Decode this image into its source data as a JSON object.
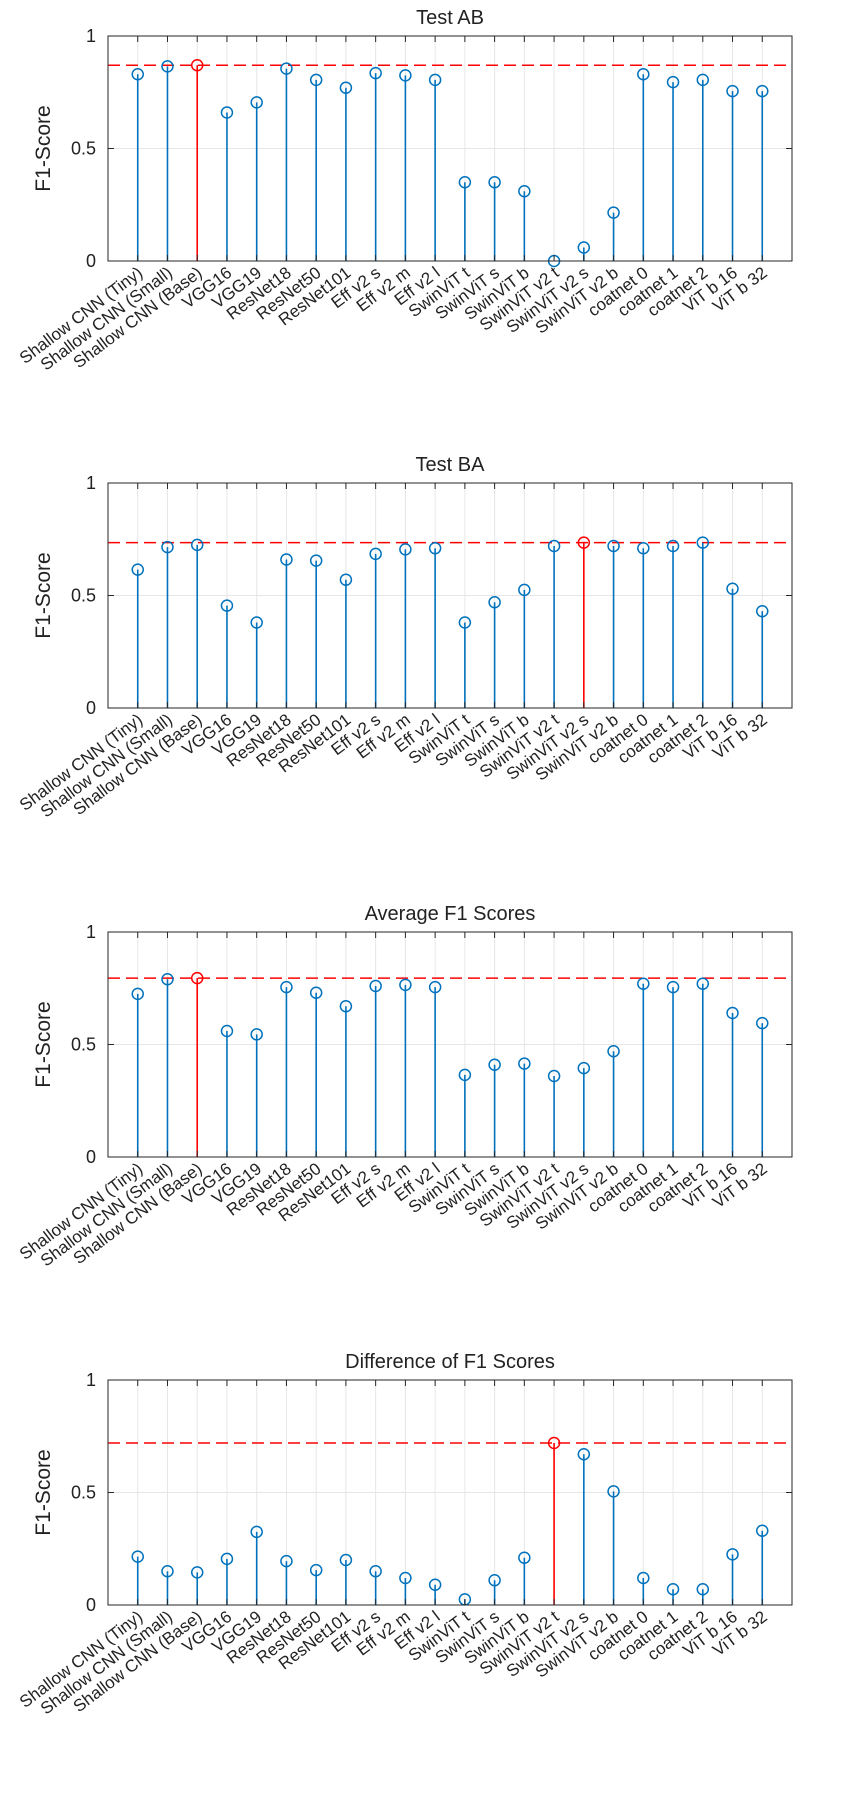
{
  "chart_data": [
    {
      "type": "stem",
      "title": "Test AB",
      "ylabel": "F1-Score",
      "xlabel": "",
      "ylim": [
        0,
        1
      ],
      "yticks": [
        "0",
        "0.5",
        "1"
      ],
      "grid": true,
      "categories": [
        "Shallow CNN (Tiny)",
        "Shallow CNN (Small)",
        "Shallow CNN (Base)",
        "VGG16",
        "VGG19",
        "ResNet18",
        "ResNet50",
        "ResNet101",
        "Eff v2 s",
        "Eff v2 m",
        "Eff v2 l",
        "SwinViT t",
        "SwinViT s",
        "SwinViT b",
        "SwinViT v2 t",
        "SwinViT v2 s",
        "SwinViT v2 b",
        "coatnet 0",
        "coatnet 1",
        "coatnet 2",
        "ViT b 16",
        "ViT b 32"
      ],
      "values": [
        0.83,
        0.865,
        0.87,
        0.66,
        0.705,
        0.855,
        0.805,
        0.77,
        0.835,
        0.825,
        0.805,
        0.35,
        0.35,
        0.31,
        0.0,
        0.06,
        0.215,
        0.83,
        0.795,
        0.805,
        0.755,
        0.755
      ],
      "highlight_index": 2,
      "reference_line": 0.87,
      "colors": {
        "stem": "#0072BD",
        "highlight": "#FF0000",
        "reference": "#FF0000"
      }
    },
    {
      "type": "stem",
      "title": "Test BA",
      "ylabel": "F1-Score",
      "xlabel": "",
      "ylim": [
        0,
        1
      ],
      "yticks": [
        "0",
        "0.5",
        "1"
      ],
      "grid": true,
      "categories": [
        "Shallow CNN (Tiny)",
        "Shallow CNN (Small)",
        "Shallow CNN (Base)",
        "VGG16",
        "VGG19",
        "ResNet18",
        "ResNet50",
        "ResNet101",
        "Eff v2 s",
        "Eff v2 m",
        "Eff v2 l",
        "SwinViT t",
        "SwinViT s",
        "SwinViT b",
        "SwinViT v2 t",
        "SwinViT v2 s",
        "SwinViT v2 b",
        "coatnet 0",
        "coatnet 1",
        "coatnet 2",
        "ViT b 16",
        "ViT b 32"
      ],
      "values": [
        0.615,
        0.715,
        0.725,
        0.455,
        0.38,
        0.66,
        0.655,
        0.57,
        0.685,
        0.705,
        0.71,
        0.38,
        0.47,
        0.525,
        0.72,
        0.735,
        0.72,
        0.71,
        0.72,
        0.735,
        0.53,
        0.43
      ],
      "highlight_index": 15,
      "reference_line": 0.735,
      "colors": {
        "stem": "#0072BD",
        "highlight": "#FF0000",
        "reference": "#FF0000"
      }
    },
    {
      "type": "stem",
      "title": "Average F1 Scores",
      "ylabel": "F1-Score",
      "xlabel": "",
      "ylim": [
        0,
        1
      ],
      "yticks": [
        "0",
        "0.5",
        "1"
      ],
      "grid": true,
      "categories": [
        "Shallow CNN (Tiny)",
        "Shallow CNN (Small)",
        "Shallow CNN (Base)",
        "VGG16",
        "VGG19",
        "ResNet18",
        "ResNet50",
        "ResNet101",
        "Eff v2 s",
        "Eff v2 m",
        "Eff v2 l",
        "SwinViT t",
        "SwinViT s",
        "SwinViT b",
        "SwinViT v2 t",
        "SwinViT v2 s",
        "SwinViT v2 b",
        "coatnet 0",
        "coatnet 1",
        "coatnet 2",
        "ViT b 16",
        "ViT b 32"
      ],
      "values": [
        0.725,
        0.79,
        0.795,
        0.56,
        0.545,
        0.755,
        0.73,
        0.67,
        0.76,
        0.765,
        0.755,
        0.365,
        0.41,
        0.415,
        0.36,
        0.395,
        0.47,
        0.77,
        0.755,
        0.77,
        0.64,
        0.595
      ],
      "highlight_index": 2,
      "reference_line": 0.795,
      "colors": {
        "stem": "#0072BD",
        "highlight": "#FF0000",
        "reference": "#FF0000"
      }
    },
    {
      "type": "stem",
      "title": "Difference of F1 Scores",
      "ylabel": "F1-Score",
      "xlabel": "",
      "ylim": [
        0,
        1
      ],
      "yticks": [
        "0",
        "0.5",
        "1"
      ],
      "grid": true,
      "categories": [
        "Shallow CNN (Tiny)",
        "Shallow CNN (Small)",
        "Shallow CNN (Base)",
        "VGG16",
        "VGG19",
        "ResNet18",
        "ResNet50",
        "ResNet101",
        "Eff v2 s",
        "Eff v2 m",
        "Eff v2 l",
        "SwinViT t",
        "SwinViT s",
        "SwinViT b",
        "SwinViT v2 t",
        "SwinViT v2 s",
        "SwinViT v2 b",
        "coatnet 0",
        "coatnet 1",
        "coatnet 2",
        "ViT b 16",
        "ViT b 32"
      ],
      "values": [
        0.215,
        0.15,
        0.145,
        0.205,
        0.325,
        0.195,
        0.155,
        0.2,
        0.15,
        0.12,
        0.09,
        0.025,
        0.11,
        0.21,
        0.72,
        0.67,
        0.505,
        0.12,
        0.07,
        0.07,
        0.225,
        0.33
      ],
      "highlight_index": 14,
      "reference_line": 0.72,
      "colors": {
        "stem": "#0072BD",
        "highlight": "#FF0000",
        "reference": "#FF0000"
      }
    }
  ]
}
